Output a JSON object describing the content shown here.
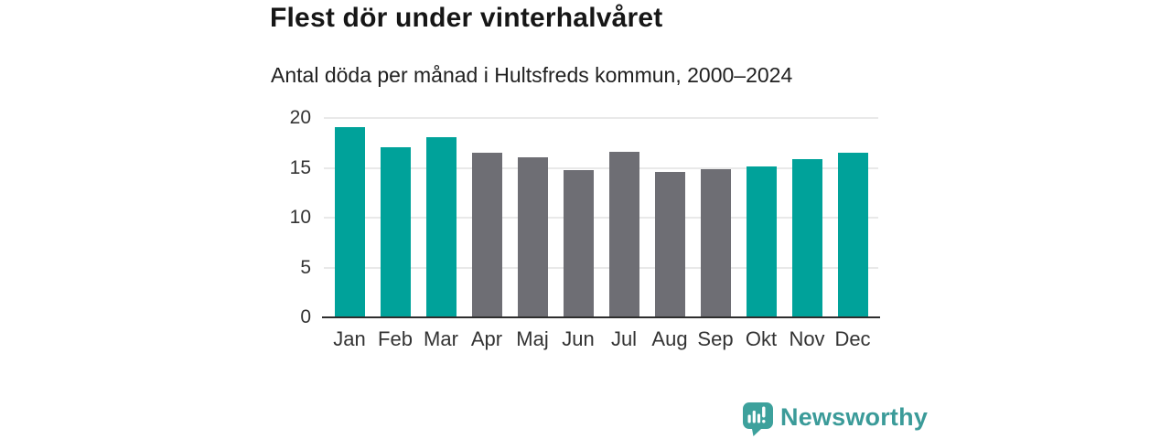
{
  "chart_data": {
    "type": "bar",
    "title": "Flest dör under vinterhalvåret",
    "subtitle": "Antal döda per månad i Hultsfreds kommun, 2000–2024",
    "categories": [
      "Jan",
      "Feb",
      "Mar",
      "Apr",
      "Maj",
      "Jun",
      "Jul",
      "Aug",
      "Sep",
      "Okt",
      "Nov",
      "Dec"
    ],
    "values": [
      19.1,
      17.1,
      18.1,
      16.5,
      16.1,
      14.8,
      16.6,
      14.6,
      14.9,
      15.1,
      15.9,
      16.5
    ],
    "bar_colors": [
      "#00a29a",
      "#00a29a",
      "#00a29a",
      "#6e6e74",
      "#6e6e74",
      "#6e6e74",
      "#6e6e74",
      "#6e6e74",
      "#6e6e74",
      "#00a29a",
      "#00a29a",
      "#00a29a"
    ],
    "xlabel": "",
    "ylabel": "",
    "ylim": [
      0,
      20
    ],
    "yticks": [
      0,
      5,
      10,
      15,
      20
    ],
    "grid": true,
    "legend": false
  },
  "colors": {
    "teal": "#00a29a",
    "gray": "#6e6e74",
    "axis_line": "#2d2d2d",
    "gridline": "#e9e9e9",
    "tick_text": "#333333",
    "title_text": "#161616"
  },
  "branding": {
    "icon": "newsworthy-logo",
    "label": "Newsworthy",
    "icon_color": "#3da19c",
    "text_color": "#3b9b99"
  }
}
